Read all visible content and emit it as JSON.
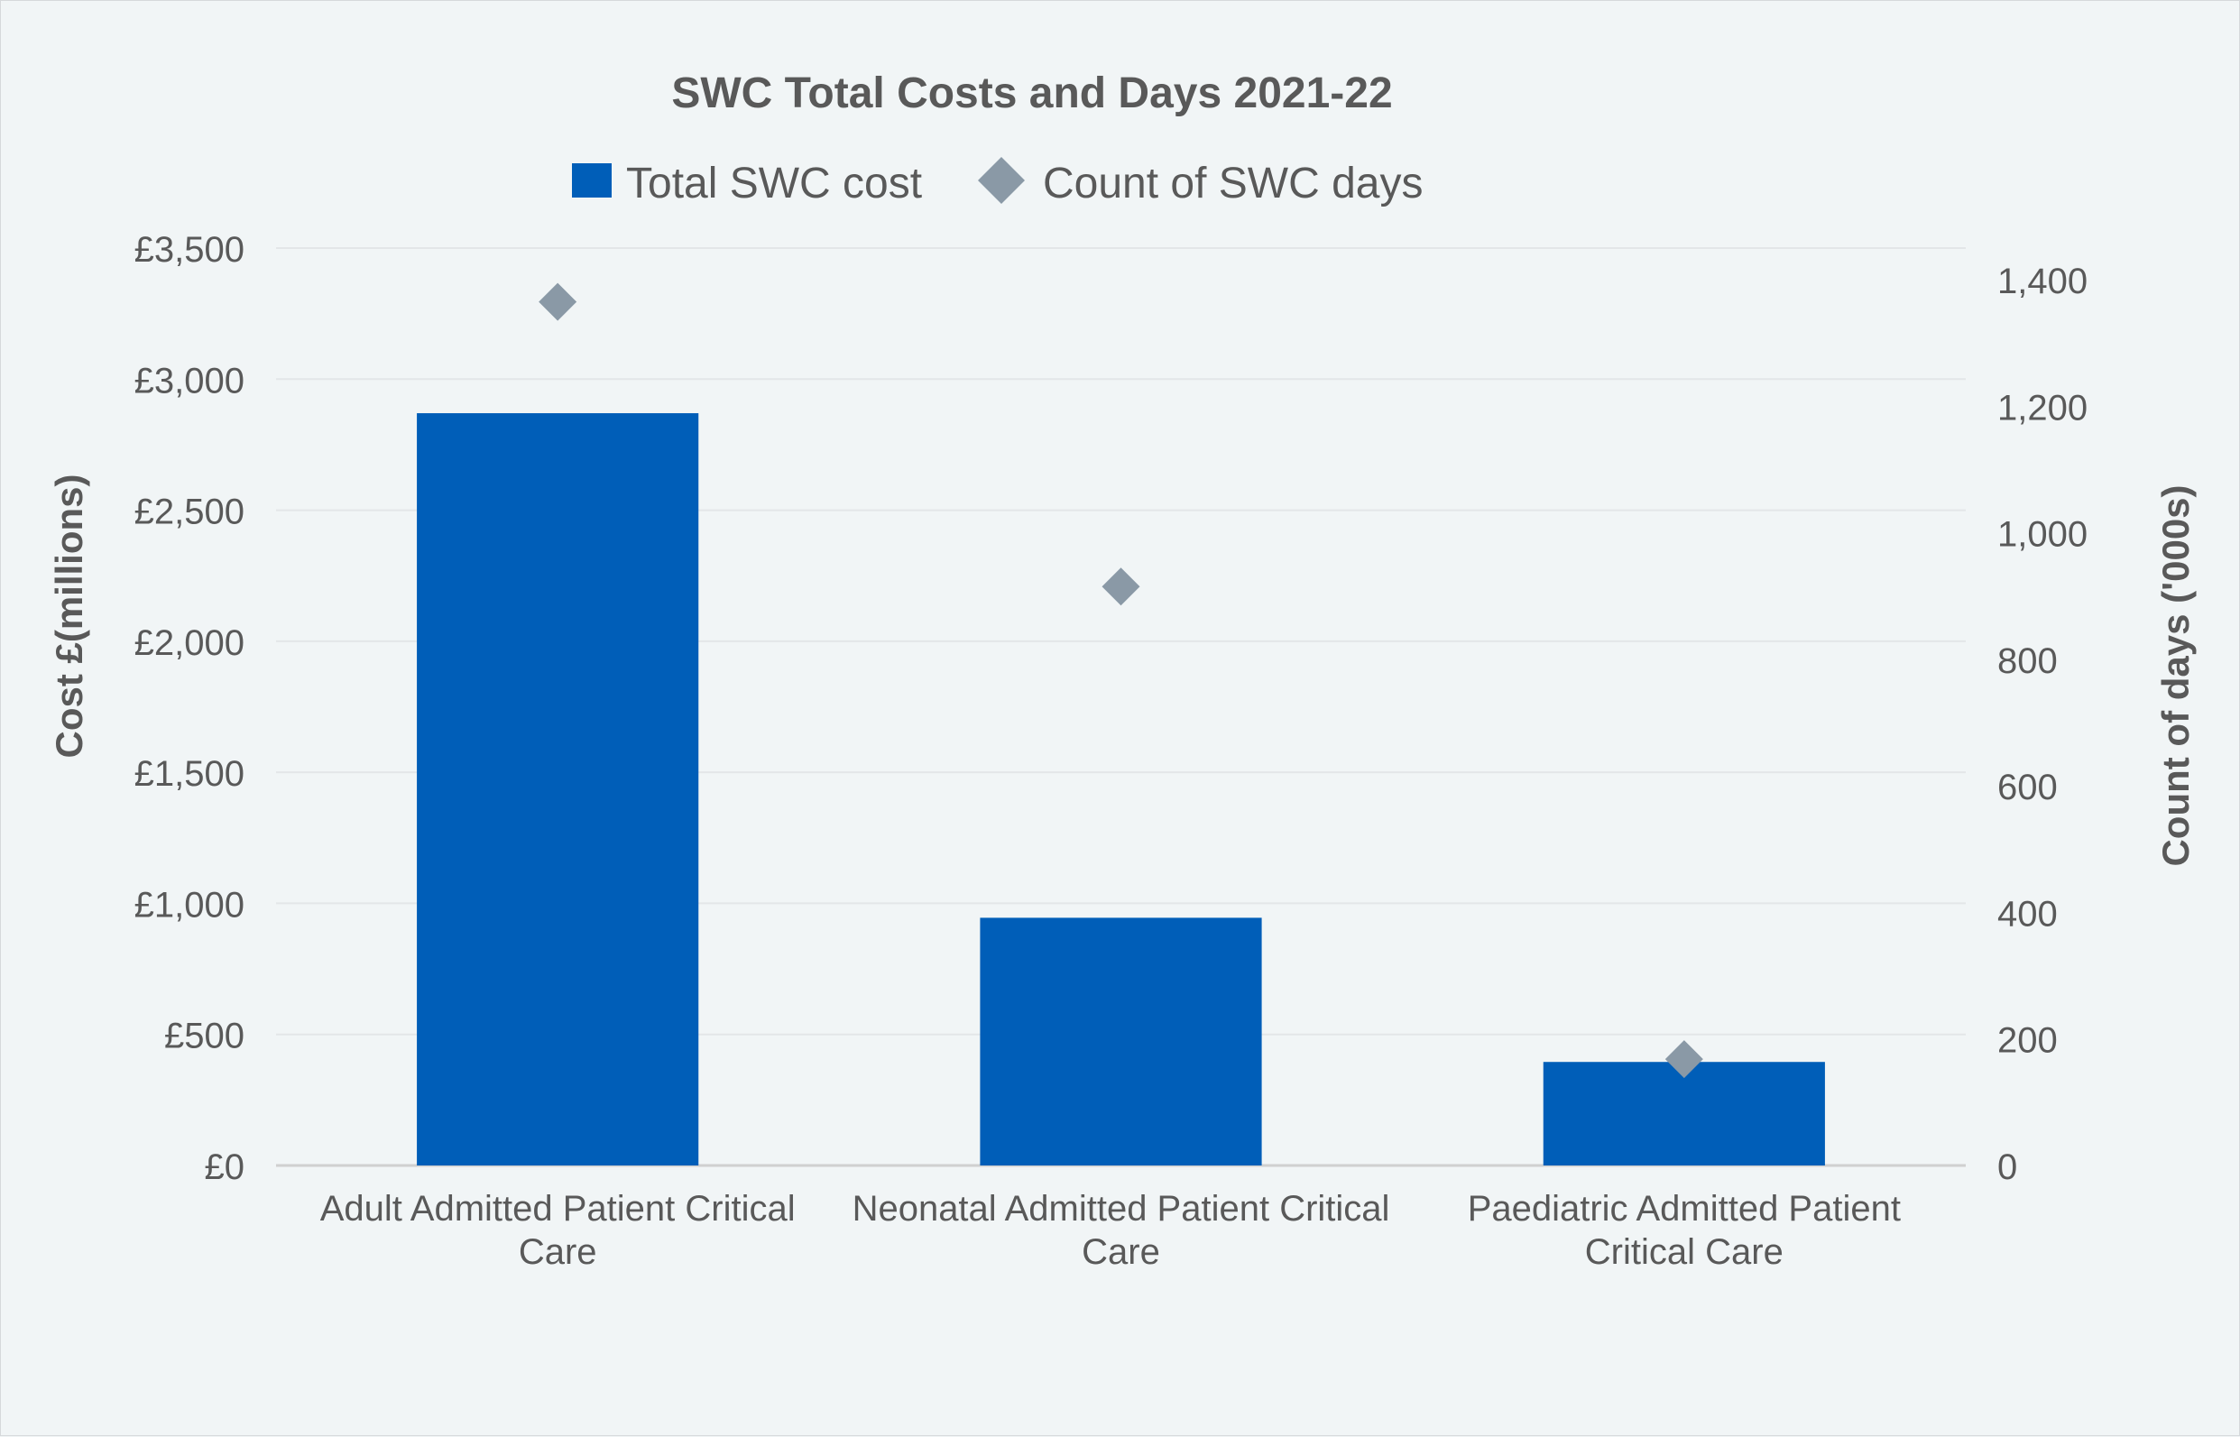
{
  "chart_data": {
    "type": "bar",
    "title": "SWC Total Costs and Days 2021-22",
    "categories": [
      [
        "Adult Admitted Patient Critical",
        "Care"
      ],
      [
        "Neonatal Admitted Patient Critical",
        "Care"
      ],
      [
        "Paediatric Admitted Patient",
        "Critical Care"
      ]
    ],
    "series": [
      {
        "name": "Total SWC cost",
        "kind": "bar",
        "axis": "left",
        "color": "#005EB8",
        "values": [
          2870,
          945,
          395
        ]
      },
      {
        "name": "Count of SWC days",
        "kind": "marker",
        "marker": "diamond",
        "axis": "right",
        "color": "#8A99A6",
        "values": [
          1365,
          915,
          168
        ]
      }
    ],
    "y_left": {
      "label": "Cost  £(millions)",
      "range": [
        0,
        3500
      ],
      "ticks": [
        0,
        500,
        1000,
        1500,
        2000,
        2500,
        3000,
        3500
      ],
      "tick_labels": [
        "£0",
        "£500",
        "£1,000",
        "£1,500",
        "£2,000",
        "£2,500",
        "£3,000",
        "£3,500"
      ]
    },
    "y_right": {
      "label": "Count of days ('000s)",
      "range": [
        0,
        1450
      ],
      "ticks": [
        0,
        200,
        400,
        600,
        800,
        1000,
        1200,
        1400
      ],
      "tick_labels": [
        "0",
        "200",
        "400",
        "600",
        "800",
        "1,000",
        "1,200",
        "1,400"
      ]
    },
    "grid": true,
    "legend": "top"
  }
}
